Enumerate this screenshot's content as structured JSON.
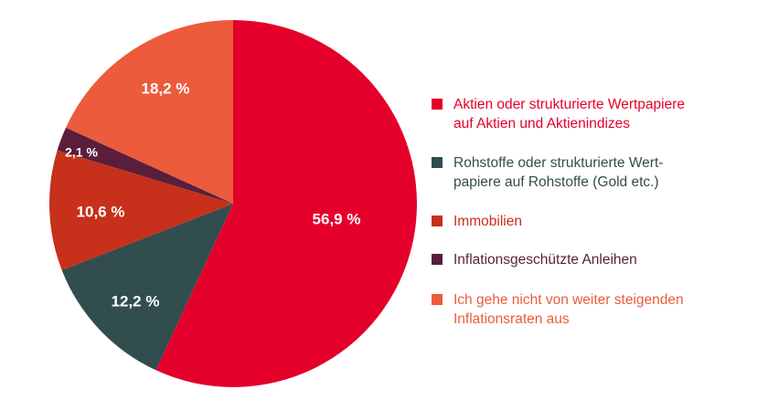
{
  "chart_data": {
    "type": "pie",
    "start_angle_deg": 0,
    "direction": "clockwise",
    "slices": [
      {
        "label": "Aktien oder strukturierte Wertpapiere\nauf Aktien und Aktienindizes",
        "value": 56.9,
        "value_label": "56,9 %",
        "color": "#e4002b",
        "legend_text_color": "#e4002b"
      },
      {
        "label": "Rohstoffe oder strukturierte Wert-\npapiere auf Rohstoffe (Gold etc.)",
        "value": 12.2,
        "value_label": "12,2 %",
        "color": "#324d4e",
        "legend_text_color": "#324d4e"
      },
      {
        "label": "Immobilien",
        "value": 10.6,
        "value_label": "10,6 %",
        "color": "#c7301a",
        "legend_text_color": "#c7301a"
      },
      {
        "label": "Inflationsgeschützte Anleihen",
        "value": 2.1,
        "value_label": "2,1 %",
        "color": "#5a1e3c",
        "legend_text_color": "#5a1e3c"
      },
      {
        "label": "Ich gehe nicht von weiter steigenden\nInflationsraten aus",
        "value": 18.2,
        "value_label": "18,2 %",
        "color": "#ec5b3b",
        "legend_text_color": "#ec5b3b"
      }
    ],
    "legend_placement": "right"
  }
}
